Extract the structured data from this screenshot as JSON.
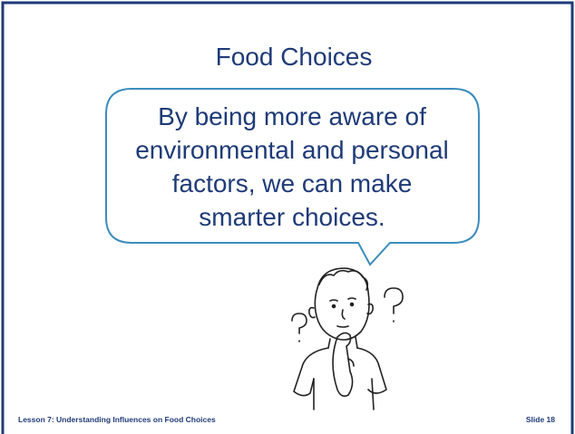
{
  "slide": {
    "title": "Food Choices",
    "bubble_lines": [
      "By being more aware of",
      "environmental and personal",
      "factors, we can make",
      "smarter choices."
    ],
    "footer_left": "Lesson 7: Understanding Influences on Food Choices",
    "footer_right": "Slide 18"
  }
}
